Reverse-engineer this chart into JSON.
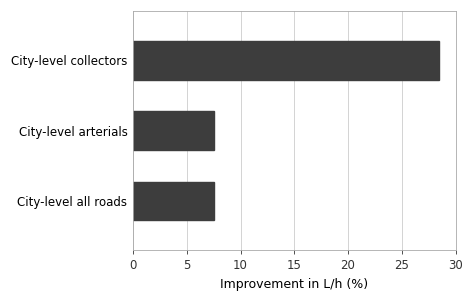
{
  "categories": [
    "City-level collectors",
    "City-level arterials",
    "City-level all roads"
  ],
  "values": [
    28.5,
    7.5,
    7.5
  ],
  "bar_color": "#3d3d3d",
  "xlabel": "Improvement in L/h (%)",
  "xlim": [
    0,
    30
  ],
  "xticks": [
    0,
    5,
    10,
    15,
    20,
    25,
    30
  ],
  "background_color": "#ffffff",
  "figure_background": "#ffffff",
  "bar_height": 0.55,
  "xlabel_fontsize": 9,
  "tick_fontsize": 8.5,
  "label_fontsize": 8.5,
  "grid_color": "#cccccc",
  "spine_color": "#aaaaaa"
}
